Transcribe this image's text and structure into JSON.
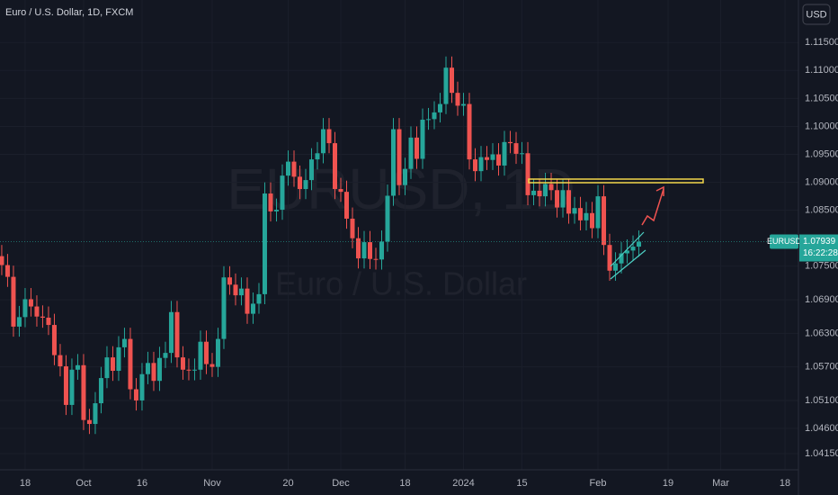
{
  "chart_data": {
    "type": "candlestick",
    "title": "Euro / U.S. Dollar, 1D, FXCM",
    "watermark": "EURUSD, 1D",
    "watermark_subtitle": "Euro / U.S. Dollar",
    "currency": "USD",
    "symbol": "EURUSD",
    "countdown": "16:22:28",
    "up_color": "#26a69a",
    "down_color": "#ef5350",
    "open": [
      1.0768,
      1.0752,
      1.0731,
      1.0642,
      1.0659,
      1.0691,
      1.0678,
      1.066,
      1.0658,
      1.0645,
      1.0591,
      1.0571,
      1.0502,
      1.0565,
      1.0573,
      1.0475,
      1.0468,
      1.0505,
      1.055,
      1.0587,
      1.0563,
      1.0605,
      1.062,
      1.053,
      1.051,
      1.0557,
      1.0577,
      1.0545,
      1.0586,
      1.0595,
      1.0668,
      1.0587,
      1.0565,
      1.0564,
      1.0565,
      1.0615,
      1.0575,
      1.057,
      1.062,
      1.073,
      1.0717,
      1.0698,
      1.071,
      1.0665,
      1.0683,
      1.07,
      1.088,
      1.0848,
      1.0851,
      1.0912,
      1.0937,
      1.091,
      1.0888,
      1.0904,
      1.0941,
      1.0952,
      1.0995,
      1.097,
      1.0888,
      1.0883,
      1.0835,
      1.08,
      1.0764,
      1.0793,
      1.0763,
      1.0762,
      1.0794,
      1.0876,
      1.0995,
      1.0895,
      1.0924,
      1.098,
      1.0942,
      1.1012,
      1.1013,
      1.1025,
      1.104,
      1.1105,
      1.106,
      1.1037,
      1.104,
      1.0941,
      1.092,
      1.0945,
      1.094,
      1.095,
      1.093,
      1.0972,
      1.097,
      1.0951,
      1.0952,
      1.0877,
      1.0885,
      1.0875,
      1.0897,
      1.0886,
      1.0855,
      1.0886,
      1.0844,
      1.0854,
      1.0832,
      1.0845,
      1.0818,
      1.0875,
      1.0788,
      1.0742,
      1.0755,
      1.0773,
      1.0778,
      1.0785
    ],
    "high": [
      1.0788,
      1.0772,
      1.0751,
      1.0679,
      1.0711,
      1.0711,
      1.0698,
      1.068,
      1.0678,
      1.0665,
      1.0611,
      1.0591,
      1.0585,
      1.0593,
      1.0593,
      1.0495,
      1.0525,
      1.057,
      1.0607,
      1.0607,
      1.0625,
      1.064,
      1.064,
      1.055,
      1.0577,
      1.0597,
      1.0597,
      1.0606,
      1.0615,
      1.0688,
      1.0688,
      1.0607,
      1.0585,
      1.0585,
      1.0635,
      1.0635,
      1.0595,
      1.064,
      1.075,
      1.075,
      1.0737,
      1.073,
      1.073,
      1.0703,
      1.072,
      1.09,
      1.09,
      1.0871,
      1.0932,
      1.0957,
      1.0957,
      1.093,
      1.0924,
      1.0961,
      1.0972,
      1.1015,
      1.1015,
      1.099,
      1.0908,
      1.0903,
      1.0855,
      1.082,
      1.0813,
      1.0813,
      1.0783,
      1.0814,
      1.0896,
      1.1015,
      1.1015,
      1.0944,
      1.1,
      1.1,
      1.1032,
      1.1033,
      1.1045,
      1.106,
      1.1125,
      1.1125,
      1.108,
      1.106,
      1.106,
      1.0961,
      1.0965,
      1.0965,
      1.097,
      1.097,
      1.0992,
      1.0992,
      1.099,
      1.0972,
      1.0972,
      1.0905,
      1.0905,
      1.0917,
      1.0917,
      1.0906,
      1.0906,
      1.0906,
      1.0874,
      1.0874,
      1.0865,
      1.0865,
      1.0895,
      1.0895,
      1.0808,
      1.0775,
      1.0793,
      1.0798,
      1.0805,
      1.0814
    ],
    "low": [
      1.0734,
      1.0713,
      1.0624,
      1.0624,
      1.0641,
      1.066,
      1.0642,
      1.064,
      1.0627,
      1.0573,
      1.0553,
      1.0484,
      1.0484,
      1.0547,
      1.0457,
      1.045,
      1.045,
      1.0487,
      1.0532,
      1.0545,
      1.0545,
      1.0587,
      1.0512,
      1.0492,
      1.0492,
      1.0539,
      1.0527,
      1.0527,
      1.0568,
      1.0577,
      1.0569,
      1.0547,
      1.0546,
      1.0546,
      1.0547,
      1.0557,
      1.0552,
      1.0552,
      1.0602,
      1.0699,
      1.068,
      1.068,
      1.0647,
      1.0647,
      1.0665,
      1.0682,
      1.083,
      1.083,
      1.0833,
      1.0894,
      1.0892,
      1.087,
      1.087,
      1.0886,
      1.0923,
      1.0934,
      1.0952,
      1.087,
      1.0865,
      1.0817,
      1.0782,
      1.0746,
      1.0746,
      1.0745,
      1.0744,
      1.0744,
      1.0776,
      1.0858,
      1.0877,
      1.0877,
      1.0906,
      1.0924,
      1.0924,
      1.0994,
      1.0995,
      1.1007,
      1.1022,
      1.1042,
      1.1019,
      1.1019,
      1.0923,
      1.0902,
      1.0902,
      1.0922,
      1.0922,
      1.0912,
      1.0912,
      1.0952,
      1.0933,
      1.0933,
      1.0859,
      1.0859,
      1.0857,
      1.0857,
      1.0868,
      1.0837,
      1.0837,
      1.0826,
      1.0826,
      1.0814,
      1.0814,
      1.08,
      1.08,
      1.077,
      1.0724,
      1.0724,
      1.0737,
      1.0755,
      1.076,
      1.0767
    ],
    "close": [
      1.0752,
      1.0731,
      1.0642,
      1.0659,
      1.0691,
      1.0678,
      1.066,
      1.0658,
      1.0645,
      1.0591,
      1.0571,
      1.0502,
      1.0565,
      1.0573,
      1.0475,
      1.0468,
      1.0505,
      1.055,
      1.0587,
      1.0563,
      1.0605,
      1.062,
      1.053,
      1.051,
      1.0557,
      1.0577,
      1.0545,
      1.0586,
      1.0595,
      1.0668,
      1.0587,
      1.0565,
      1.0564,
      1.0565,
      1.0615,
      1.0575,
      1.057,
      1.062,
      1.073,
      1.0717,
      1.0698,
      1.071,
      1.0665,
      1.0683,
      1.07,
      1.088,
      1.0848,
      1.0851,
      1.0912,
      1.0937,
      1.091,
      1.0888,
      1.0904,
      1.0941,
      1.0952,
      1.0995,
      1.097,
      1.0888,
      1.0883,
      1.0835,
      1.08,
      1.0764,
      1.0793,
      1.0763,
      1.0762,
      1.0794,
      1.0876,
      1.0995,
      1.0895,
      1.0924,
      1.098,
      1.0942,
      1.1012,
      1.1013,
      1.1025,
      1.104,
      1.1105,
      1.106,
      1.1037,
      1.104,
      1.0941,
      1.092,
      1.0945,
      1.094,
      1.095,
      1.093,
      1.0972,
      1.097,
      1.0951,
      1.0952,
      1.0877,
      1.0885,
      1.0875,
      1.0897,
      1.0886,
      1.0855,
      1.0886,
      1.0844,
      1.0854,
      1.0832,
      1.0845,
      1.0818,
      1.0875,
      1.0788,
      1.0742,
      1.0755,
      1.0773,
      1.0778,
      1.0785,
      1.07939
    ],
    "xlim": [
      -0.3,
      136.3
    ],
    "xticks": [
      {
        "value": 4,
        "label": "18"
      },
      {
        "value": 14,
        "label": "Oct"
      },
      {
        "value": 24,
        "label": "16"
      },
      {
        "value": 36,
        "label": "Nov"
      },
      {
        "value": 49,
        "label": "20"
      },
      {
        "value": 58,
        "label": "Dec"
      },
      {
        "value": 69,
        "label": "18"
      },
      {
        "value": 79,
        "label": "2024"
      },
      {
        "value": 89,
        "label": "15"
      },
      {
        "value": 102,
        "label": "Feb"
      },
      {
        "value": 114,
        "label": "19"
      },
      {
        "value": 123,
        "label": "Mar"
      },
      {
        "value": 134,
        "label": "18"
      }
    ],
    "ylim": [
      1.0386,
      1.1226
    ],
    "yticks": [
      {
        "value": 1.115,
        "label": "1.11500"
      },
      {
        "value": 1.11,
        "label": "1.11000"
      },
      {
        "value": 1.105,
        "label": "1.10500"
      },
      {
        "value": 1.1,
        "label": "1.10000"
      },
      {
        "value": 1.095,
        "label": "1.09500"
      },
      {
        "value": 1.09,
        "label": "1.09000"
      },
      {
        "value": 1.085,
        "label": "1.08500"
      },
      {
        "value": 1.075,
        "label": "1.07500"
      },
      {
        "value": 1.069,
        "label": "1.06900"
      },
      {
        "value": 1.063,
        "label": "1.06300"
      },
      {
        "value": 1.057,
        "label": "1.05700"
      },
      {
        "value": 1.051,
        "label": "1.05100"
      },
      {
        "value": 1.046,
        "label": "1.04600"
      },
      {
        "value": 1.0415,
        "label": "1.04150"
      }
    ]
  }
}
